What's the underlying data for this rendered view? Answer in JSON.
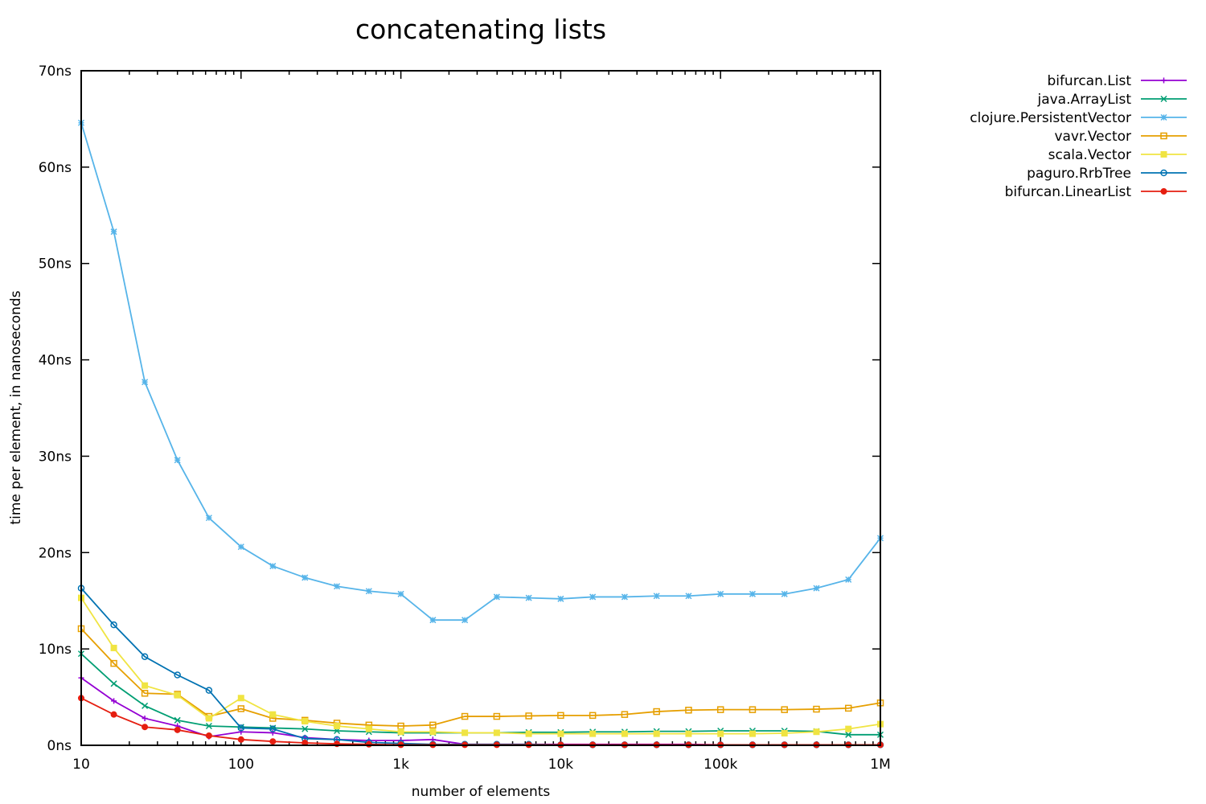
{
  "chart_data": {
    "type": "line",
    "title": "concatenating lists",
    "xlabel": "number of elements",
    "ylabel": "time per element, in nanoseconds",
    "x_scale": "log",
    "xlim": [
      10,
      1000000
    ],
    "ylim": [
      0,
      70
    ],
    "x_ticks": [
      10,
      100,
      1000,
      10000,
      100000,
      1000000
    ],
    "x_tick_labels": [
      "10",
      "100",
      "1k",
      "10k",
      "100k",
      "1M"
    ],
    "y_ticks": [
      0,
      10,
      20,
      30,
      40,
      50,
      60,
      70
    ],
    "y_tick_labels": [
      "0ns",
      "10ns",
      "20ns",
      "30ns",
      "40ns",
      "50ns",
      "60ns",
      "70ns"
    ],
    "grid": false,
    "legend_position": "top-right outside",
    "x": [
      10,
      16,
      25,
      40,
      63,
      100,
      158,
      251,
      398,
      631,
      1000,
      1585,
      2512,
      3981,
      6310,
      10000,
      15849,
      25119,
      39811,
      63096,
      100000,
      158489,
      251189,
      398107,
      630957,
      1000000
    ],
    "series": [
      {
        "name": "bifurcan.List",
        "color": "#9400d3",
        "marker": "plus",
        "values": [
          7.0,
          4.6,
          2.8,
          2.0,
          0.9,
          1.4,
          1.3,
          0.8,
          0.6,
          0.5,
          0.5,
          0.6,
          0.1,
          0.1,
          0.1,
          0.1,
          0.1,
          0.1,
          0.1,
          0.1,
          0.05,
          0.05,
          0.05,
          0.05,
          0.05,
          0.05
        ]
      },
      {
        "name": "java.ArrayList",
        "color": "#009e73",
        "marker": "cross",
        "values": [
          9.5,
          6.4,
          4.1,
          2.6,
          2.0,
          1.9,
          1.8,
          1.7,
          1.5,
          1.4,
          1.3,
          1.3,
          1.3,
          1.3,
          1.35,
          1.35,
          1.4,
          1.4,
          1.45,
          1.45,
          1.5,
          1.5,
          1.5,
          1.45,
          1.1,
          1.1
        ]
      },
      {
        "name": "clojure.PersistentVector",
        "color": "#56b4e9",
        "marker": "star",
        "values": [
          64.6,
          53.3,
          37.7,
          29.6,
          23.6,
          20.6,
          18.6,
          17.4,
          16.5,
          16.0,
          15.7,
          13.0,
          13.0,
          15.4,
          15.3,
          15.2,
          15.4,
          15.4,
          15.5,
          15.5,
          15.7,
          15.7,
          15.7,
          16.3,
          17.2,
          21.5
        ]
      },
      {
        "name": "vavr.Vector",
        "color": "#e69f00",
        "marker": "square",
        "values": [
          12.1,
          8.5,
          5.4,
          5.3,
          3.0,
          3.8,
          2.8,
          2.6,
          2.3,
          2.1,
          2.0,
          2.1,
          3.0,
          3.0,
          3.05,
          3.1,
          3.1,
          3.2,
          3.5,
          3.65,
          3.7,
          3.7,
          3.7,
          3.75,
          3.85,
          4.4
        ]
      },
      {
        "name": "scala.Vector",
        "color": "#f0e442",
        "marker": "square-filled",
        "values": [
          15.3,
          10.1,
          6.2,
          5.2,
          2.8,
          4.9,
          3.2,
          2.5,
          2.0,
          1.7,
          1.4,
          1.4,
          1.3,
          1.3,
          1.2,
          1.2,
          1.2,
          1.2,
          1.2,
          1.2,
          1.2,
          1.2,
          1.25,
          1.4,
          1.7,
          2.2
        ]
      },
      {
        "name": "paguro.RrbTree",
        "color": "#0072b2",
        "marker": "circle",
        "values": [
          16.3,
          12.5,
          9.2,
          7.3,
          5.7,
          1.8,
          1.7,
          0.7,
          0.6,
          0.3,
          0.2,
          0.1,
          0.1,
          0.1,
          0.1,
          0.05,
          0.05,
          0.05,
          0.05,
          0.05,
          0.05,
          0.05,
          0.05,
          0.05,
          0.05,
          0.05
        ]
      },
      {
        "name": "bifurcan.LinearList",
        "color": "#e51e10",
        "marker": "circle-filled",
        "values": [
          4.9,
          3.2,
          1.9,
          1.6,
          1.0,
          0.6,
          0.4,
          0.25,
          0.15,
          0.1,
          0.05,
          0.05,
          0.05,
          0.05,
          0.05,
          0.05,
          0.05,
          0.05,
          0.05,
          0.05,
          0.05,
          0.05,
          0.05,
          0.05,
          0.05,
          0.05
        ]
      }
    ]
  }
}
